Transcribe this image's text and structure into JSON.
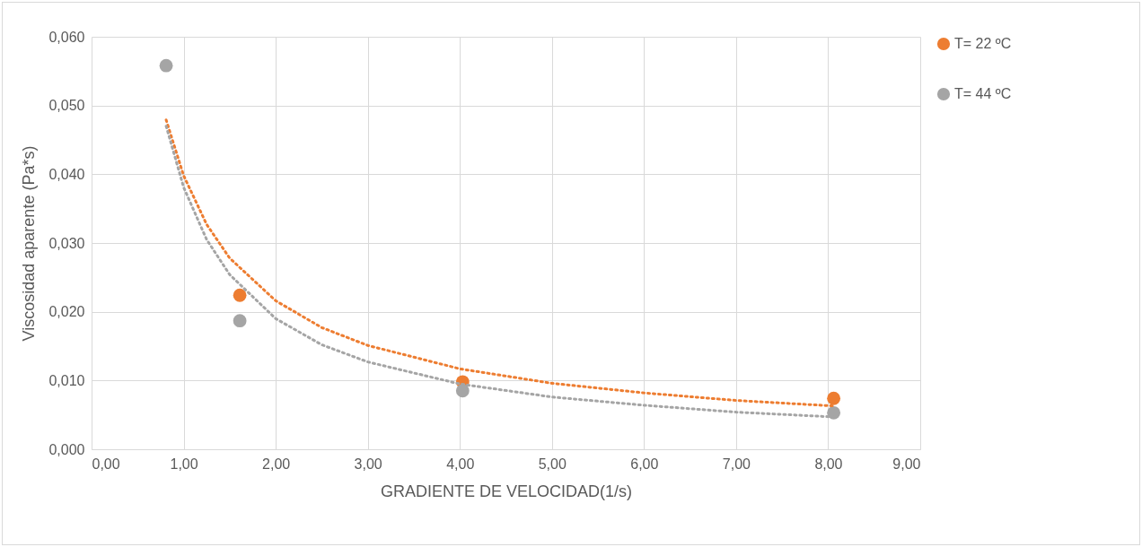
{
  "chart_data": {
    "type": "scatter",
    "xlabel": "GRADIENTE DE VELOCIDAD(1/s)",
    "ylabel": "Viscosidad aparente (Pa*s)",
    "xlim": [
      0,
      9
    ],
    "xticks": [
      {
        "value": 0,
        "label": "0,00"
      },
      {
        "value": 1,
        "label": "1,00"
      },
      {
        "value": 2,
        "label": "2,00"
      },
      {
        "value": 3,
        "label": "3,00"
      },
      {
        "value": 4,
        "label": "4,00"
      },
      {
        "value": 5,
        "label": "5,00"
      },
      {
        "value": 6,
        "label": "6,00"
      },
      {
        "value": 7,
        "label": "7,00"
      },
      {
        "value": 8,
        "label": "8,00"
      },
      {
        "value": 9,
        "label": "9,00"
      }
    ],
    "ylim": [
      0,
      0.06
    ],
    "yticks": [
      {
        "value": 0,
        "label": "0,000"
      },
      {
        "value": 0.01,
        "label": "0,010"
      },
      {
        "value": 0.02,
        "label": "0,020"
      },
      {
        "value": 0.03,
        "label": "0,030"
      },
      {
        "value": 0.04,
        "label": "0,040"
      },
      {
        "value": 0.05,
        "label": "0,050"
      },
      {
        "value": 0.06,
        "label": "0,060"
      }
    ],
    "grid": true,
    "legend": "right",
    "marker": "circle",
    "series": [
      {
        "name": "T= 22 ºC",
        "color": "#ed7d31",
        "x": [
          1.61,
          4.03,
          8.06
        ],
        "values": [
          0.0224,
          0.0098,
          0.0074
        ]
      },
      {
        "name": "T= 44 ºC",
        "color": "#a5a5a5",
        "x": [
          0.81,
          1.61,
          4.03,
          8.06
        ],
        "values": [
          0.0558,
          0.0187,
          0.0085,
          0.0053
        ]
      },
      {
        "type": "line",
        "color": "#ed7d31",
        "marker": "none",
        "line_style": "dotted",
        "x": [
          0.81,
          1,
          1.25,
          1.5,
          2,
          2.5,
          3,
          4,
          5,
          6,
          7,
          8.06
        ],
        "values": [
          0.0479,
          0.0398,
          0.0327,
          0.0278,
          0.0216,
          0.0177,
          0.0151,
          0.0117,
          0.0096,
          0.0082,
          0.0071,
          0.0063
        ]
      },
      {
        "type": "line",
        "color": "#a5a5a5",
        "marker": "none",
        "line_style": "dotted",
        "x": [
          0.81,
          1,
          1.25,
          1.5,
          2,
          2.5,
          3,
          4,
          5,
          6,
          7,
          8.06
        ],
        "values": [
          0.047,
          0.0381,
          0.0305,
          0.0254,
          0.019,
          0.0152,
          0.0127,
          0.0095,
          0.0076,
          0.0064,
          0.0054,
          0.0047
        ]
      }
    ]
  }
}
